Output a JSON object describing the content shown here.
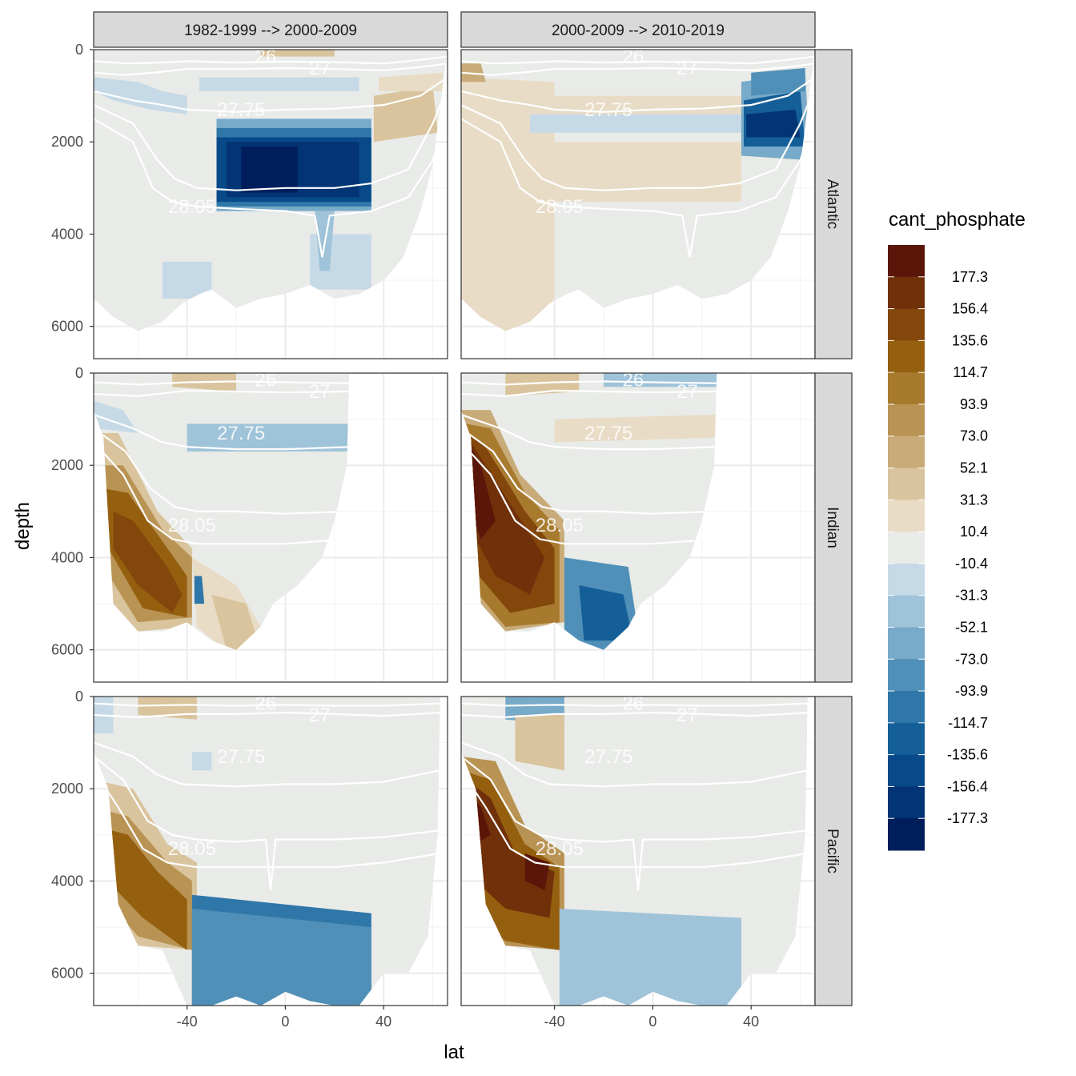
{
  "chart_data": {
    "type": "heatmap",
    "description_fields": {
      "xlabel": "lat",
      "ylabel": "depth",
      "legend_title": "cant_phosphate"
    },
    "x_ticks": [
      "-40",
      "0",
      "40"
    ],
    "x_tick_values": [
      -40,
      0,
      40
    ],
    "y_ticks": [
      "0",
      "2000",
      "4000",
      "6000"
    ],
    "y_tick_values": [
      0,
      2000,
      4000,
      6000
    ],
    "xlim": [
      -78,
      66
    ],
    "ylim": [
      6700,
      0
    ],
    "columns": [
      "1982-1999 --> 2000-2009",
      "2000-2009 --> 2010-2019"
    ],
    "rows": [
      "Atlantic",
      "Indian",
      "Pacific"
    ],
    "isopycnal_labels": [
      "26",
      "27",
      "27.75",
      "28.05"
    ],
    "legend_breaks": [
      "177.3",
      "156.4",
      "135.6",
      "114.7",
      "93.9",
      "73.0",
      "52.1",
      "31.3",
      "10.4",
      "-10.4",
      "-31.3",
      "-52.1",
      "-73.0",
      "-93.9",
      "-114.7",
      "-135.6",
      "-156.4",
      "-177.3"
    ],
    "legend_colors": [
      "#5a1608",
      "#70300a",
      "#83470c",
      "#94600f",
      "#a87a2e",
      "#b99353",
      "#c8ab78",
      "#d9c49d",
      "#e8dcc6",
      "#e9ebe8",
      "#c6d9e6",
      "#9fc3d9",
      "#78aac9",
      "#5090b8",
      "#2f77a9",
      "#155f99",
      "#084a89",
      "#033475",
      "#001e5c"
    ],
    "panels": [
      {
        "row": "Atlantic",
        "column": "1982-1999 --> 2000-2009",
        "features": "strong negative core 20S-35N at 1800-3500 m; weak negative below; small positive north of 35N near 1500 m"
      },
      {
        "row": "Atlantic",
        "column": "2000-2009 --> 2010-2019",
        "features": "weak positive across most depths south of 35N; strong negative north of 35N at 1000-2500 m"
      },
      {
        "row": "Indian",
        "column": "1982-1999 --> 2000-2009",
        "features": "strong positive on southern slope 70S-40S below 1500 m; weak positive thermocline"
      },
      {
        "row": "Indian",
        "column": "2000-2009 --> 2010-2019",
        "features": "very strong positive 70S-40S below 1000 m; negative abyssal 40S-10S"
      },
      {
        "row": "Pacific",
        "column": "1982-1999 --> 2000-2009",
        "features": "strong positive 70S-40S below 2500 m; negative abyssal 40S-30N"
      },
      {
        "row": "Pacific",
        "column": "2000-2009 --> 2010-2019",
        "features": "very strong positive 70S-40S below 1000 m; weak negative abyssal 40S-40N"
      }
    ]
  }
}
